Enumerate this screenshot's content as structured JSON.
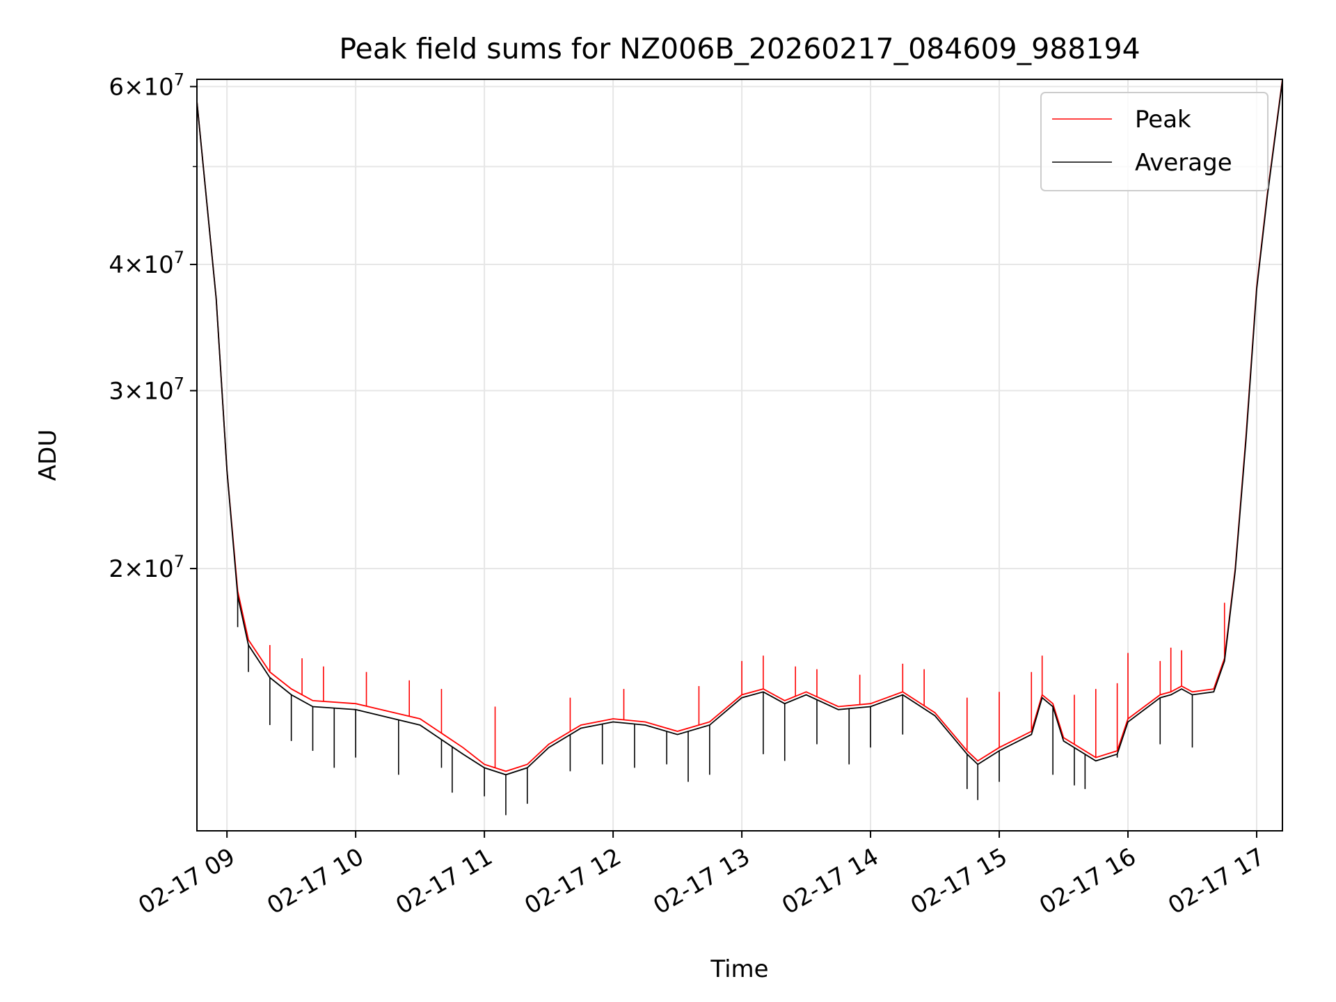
{
  "chart_data": {
    "type": "line",
    "title": "Peak field sums for NZ006B_20260217_084609_988194",
    "xlabel": "Time",
    "ylabel": "ADU",
    "yscale": "log",
    "ylim": [
      11000000,
      61000000
    ],
    "xlim": [
      "02-17 08:46",
      "02-17 17:12"
    ],
    "x_ticks": [
      "02-17 09",
      "02-17 10",
      "02-17 11",
      "02-17 12",
      "02-17 13",
      "02-17 14",
      "02-17 15",
      "02-17 16",
      "02-17 17"
    ],
    "y_ticks": [
      {
        "value": 20000000,
        "base": "2",
        "exp": "7"
      },
      {
        "value": 30000000,
        "base": "3",
        "exp": "7"
      },
      {
        "value": 40000000,
        "base": "4",
        "exp": "7"
      },
      {
        "value": 60000000,
        "base": "6",
        "exp": "7"
      }
    ],
    "y_minor_ticks": [
      50000000
    ],
    "grid": true,
    "legend": {
      "position": "upper-right"
    },
    "series": [
      {
        "name": "Peak",
        "color": "#ff0000",
        "x": [
          "08:46",
          "08:55",
          "09:00",
          "09:05",
          "09:10",
          "09:20",
          "09:30",
          "09:40",
          "10:00",
          "10:30",
          "10:50",
          "11:00",
          "11:10",
          "11:20",
          "11:30",
          "11:45",
          "12:00",
          "12:15",
          "12:30",
          "12:45",
          "13:00",
          "13:10",
          "13:20",
          "13:30",
          "13:45",
          "14:00",
          "14:15",
          "14:30",
          "14:45",
          "14:50",
          "15:00",
          "15:15",
          "15:20",
          "15:25",
          "15:30",
          "15:45",
          "15:55",
          "16:00",
          "16:15",
          "16:20",
          "16:25",
          "16:30",
          "16:40",
          "16:45",
          "16:50",
          "16:55",
          "17:00",
          "17:05",
          "17:12"
        ],
        "values": [
          58000000,
          37000000,
          25000000,
          19000000,
          17000000,
          15800000,
          15200000,
          14800000,
          14700000,
          14200000,
          13300000,
          12800000,
          12600000,
          12800000,
          13400000,
          14000000,
          14200000,
          14100000,
          13800000,
          14100000,
          15000000,
          15200000,
          14800000,
          15100000,
          14600000,
          14700000,
          15100000,
          14400000,
          13200000,
          12900000,
          13300000,
          13800000,
          15000000,
          14700000,
          13600000,
          13000000,
          13200000,
          14200000,
          15000000,
          15100000,
          15300000,
          15100000,
          15200000,
          16300000,
          20000000,
          27000000,
          38000000,
          47000000,
          61000000
        ],
        "spikes": [
          [
            "09:20",
            16800000
          ],
          [
            "09:35",
            16300000
          ],
          [
            "09:45",
            16000000
          ],
          [
            "10:05",
            15800000
          ],
          [
            "10:25",
            15500000
          ],
          [
            "10:40",
            15200000
          ],
          [
            "11:05",
            14600000
          ],
          [
            "11:40",
            14900000
          ],
          [
            "12:05",
            15200000
          ],
          [
            "12:40",
            15300000
          ],
          [
            "13:00",
            16200000
          ],
          [
            "13:10",
            16400000
          ],
          [
            "13:25",
            16000000
          ],
          [
            "13:35",
            15900000
          ],
          [
            "13:55",
            15700000
          ],
          [
            "14:15",
            16100000
          ],
          [
            "14:25",
            15900000
          ],
          [
            "14:45",
            14900000
          ],
          [
            "15:00",
            15100000
          ],
          [
            "15:15",
            15800000
          ],
          [
            "15:20",
            16400000
          ],
          [
            "15:35",
            15000000
          ],
          [
            "15:45",
            15200000
          ],
          [
            "15:55",
            15400000
          ],
          [
            "16:00",
            16500000
          ],
          [
            "16:15",
            16200000
          ],
          [
            "16:20",
            16700000
          ],
          [
            "16:25",
            16600000
          ],
          [
            "16:45",
            18500000
          ]
        ]
      },
      {
        "name": "Average",
        "color": "#000000",
        "x": [
          "08:46",
          "08:55",
          "09:00",
          "09:05",
          "09:10",
          "09:20",
          "09:30",
          "09:40",
          "10:00",
          "10:30",
          "10:50",
          "11:00",
          "11:10",
          "11:20",
          "11:30",
          "11:45",
          "12:00",
          "12:15",
          "12:30",
          "12:45",
          "13:00",
          "13:10",
          "13:20",
          "13:30",
          "13:45",
          "14:00",
          "14:15",
          "14:30",
          "14:45",
          "14:50",
          "15:00",
          "15:15",
          "15:20",
          "15:25",
          "15:30",
          "15:45",
          "15:55",
          "16:00",
          "16:15",
          "16:20",
          "16:25",
          "16:30",
          "16:40",
          "16:45",
          "16:50",
          "16:55",
          "17:00",
          "17:05",
          "17:12"
        ],
        "values": [
          58000000,
          37000000,
          25000000,
          18800000,
          16800000,
          15600000,
          15000000,
          14600000,
          14500000,
          14000000,
          13100000,
          12700000,
          12500000,
          12700000,
          13300000,
          13900000,
          14100000,
          14000000,
          13700000,
          14000000,
          14900000,
          15100000,
          14700000,
          15000000,
          14500000,
          14600000,
          15000000,
          14300000,
          13100000,
          12800000,
          13200000,
          13700000,
          14900000,
          14600000,
          13500000,
          12900000,
          13100000,
          14100000,
          14900000,
          15000000,
          15200000,
          15000000,
          15100000,
          16200000,
          19900000,
          26800000,
          37800000,
          46800000,
          60800000
        ],
        "dips": [
          [
            "09:05",
            17500000
          ],
          [
            "09:10",
            15800000
          ],
          [
            "09:20",
            14000000
          ],
          [
            "09:30",
            13500000
          ],
          [
            "09:40",
            13200000
          ],
          [
            "09:50",
            12700000
          ],
          [
            "10:00",
            13000000
          ],
          [
            "10:20",
            12500000
          ],
          [
            "10:40",
            12700000
          ],
          [
            "10:45",
            12000000
          ],
          [
            "11:00",
            11900000
          ],
          [
            "11:10",
            11400000
          ],
          [
            "11:20",
            11700000
          ],
          [
            "11:40",
            12600000
          ],
          [
            "11:55",
            12800000
          ],
          [
            "12:10",
            12700000
          ],
          [
            "12:25",
            12800000
          ],
          [
            "12:35",
            12300000
          ],
          [
            "12:45",
            12500000
          ],
          [
            "13:10",
            13100000
          ],
          [
            "13:20",
            12900000
          ],
          [
            "13:35",
            13400000
          ],
          [
            "13:50",
            12800000
          ],
          [
            "14:00",
            13300000
          ],
          [
            "14:15",
            13700000
          ],
          [
            "14:45",
            12100000
          ],
          [
            "14:50",
            11800000
          ],
          [
            "15:00",
            12300000
          ],
          [
            "15:25",
            12500000
          ],
          [
            "15:35",
            12200000
          ],
          [
            "15:40",
            12100000
          ],
          [
            "15:55",
            13000000
          ],
          [
            "16:15",
            13400000
          ],
          [
            "16:30",
            13300000
          ]
        ]
      }
    ]
  }
}
